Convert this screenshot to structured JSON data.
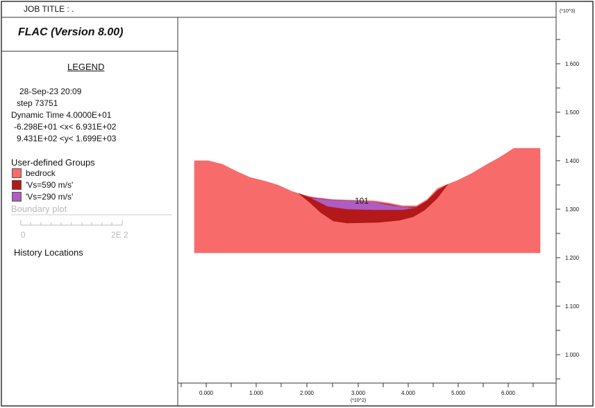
{
  "header": {
    "job_title": "JOB TITLE : .",
    "y_scale": "(*10^3)"
  },
  "legend": {
    "app_title": "FLAC (Version 8.00)",
    "title": "LEGEND",
    "date_time": "28-Sep-23  20:09",
    "step": "step     73751",
    "dynamic_time": "Dynamic Time   4.0000E+01",
    "x_range": "-6.298E+01 <x<  6.931E+02",
    "y_range": "9.431E+02 <y<  1.699E+03",
    "groups_title": "User-defined Groups",
    "groups": [
      {
        "label": "bedrock",
        "color": "#f86b6b"
      },
      {
        "label": "'Vs=590 m/s'",
        "color": "#b41818"
      },
      {
        "label": "'Vs=290 m/s'",
        "color": "#b05cc0"
      }
    ],
    "boundary_title": "Boundary plot",
    "scale_start": "0",
    "scale_end": "2E  2",
    "history_title": "History Locations"
  },
  "plot": {
    "history_point_label": "101",
    "x_ticks": [
      "0.000",
      "1.000",
      "2.000",
      "3.000",
      "4.000",
      "5.000",
      "6.000"
    ],
    "x_scale": "(*10^2)",
    "y_ticks": [
      "1.600",
      "1.500",
      "1.400",
      "1.300",
      "1.200",
      "1.100",
      "1.000"
    ]
  }
}
